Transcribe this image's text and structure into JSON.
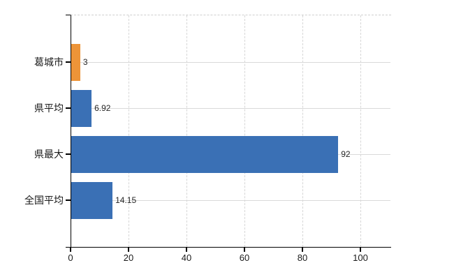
{
  "chart_data": {
    "type": "bar",
    "orientation": "horizontal",
    "title": "",
    "xlabel": "",
    "ylabel": "",
    "categories": [
      "葛城市",
      "県平均",
      "県最大",
      "全国平均"
    ],
    "values": [
      3,
      6.92,
      92,
      14.15
    ],
    "value_labels": [
      "3",
      "6.92",
      "92",
      "14.15"
    ],
    "bar_colors": [
      "#ED9438",
      "#3A70B5",
      "#3A70B5",
      "#3A70B5"
    ],
    "x_ticks": [
      "0",
      "20",
      "40",
      "60",
      "80",
      "100"
    ],
    "x_tick_values": [
      0,
      20,
      40,
      60,
      80,
      100
    ],
    "xlim": [
      0,
      110.6
    ],
    "grid": true,
    "legend": false,
    "highlight_color": "#ED9438",
    "series_color": "#3A70B5",
    "axis_color": "#000000",
    "grid_color": "#d9d9d9",
    "text_color": "#1a1a1a",
    "background_color": "#ffffff"
  }
}
